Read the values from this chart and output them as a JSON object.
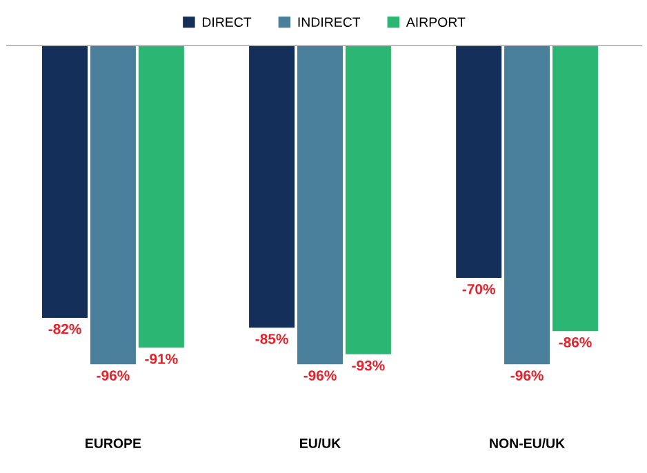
{
  "chart_data": {
    "type": "bar",
    "categories": [
      "EUROPE",
      "EU/UK",
      "NON-EU/UK"
    ],
    "series": [
      {
        "name": "DIRECT",
        "color": "#14305a",
        "values": [
          -82,
          -85,
          -70
        ],
        "value_labels": [
          "-82%",
          "-85%",
          "-70%"
        ]
      },
      {
        "name": "INDIRECT",
        "color": "#4a7f9c",
        "values": [
          -96,
          -96,
          -96
        ],
        "value_labels": [
          "-96%",
          "-96%",
          "-96%"
        ]
      },
      {
        "name": "AIRPORT",
        "color": "#2bb673",
        "values": [
          -91,
          -93,
          -86
        ],
        "value_labels": [
          "-91%",
          "-93%",
          "-86%"
        ]
      }
    ],
    "tick_labels": "x",
    "grid": false,
    "legend": "top"
  }
}
